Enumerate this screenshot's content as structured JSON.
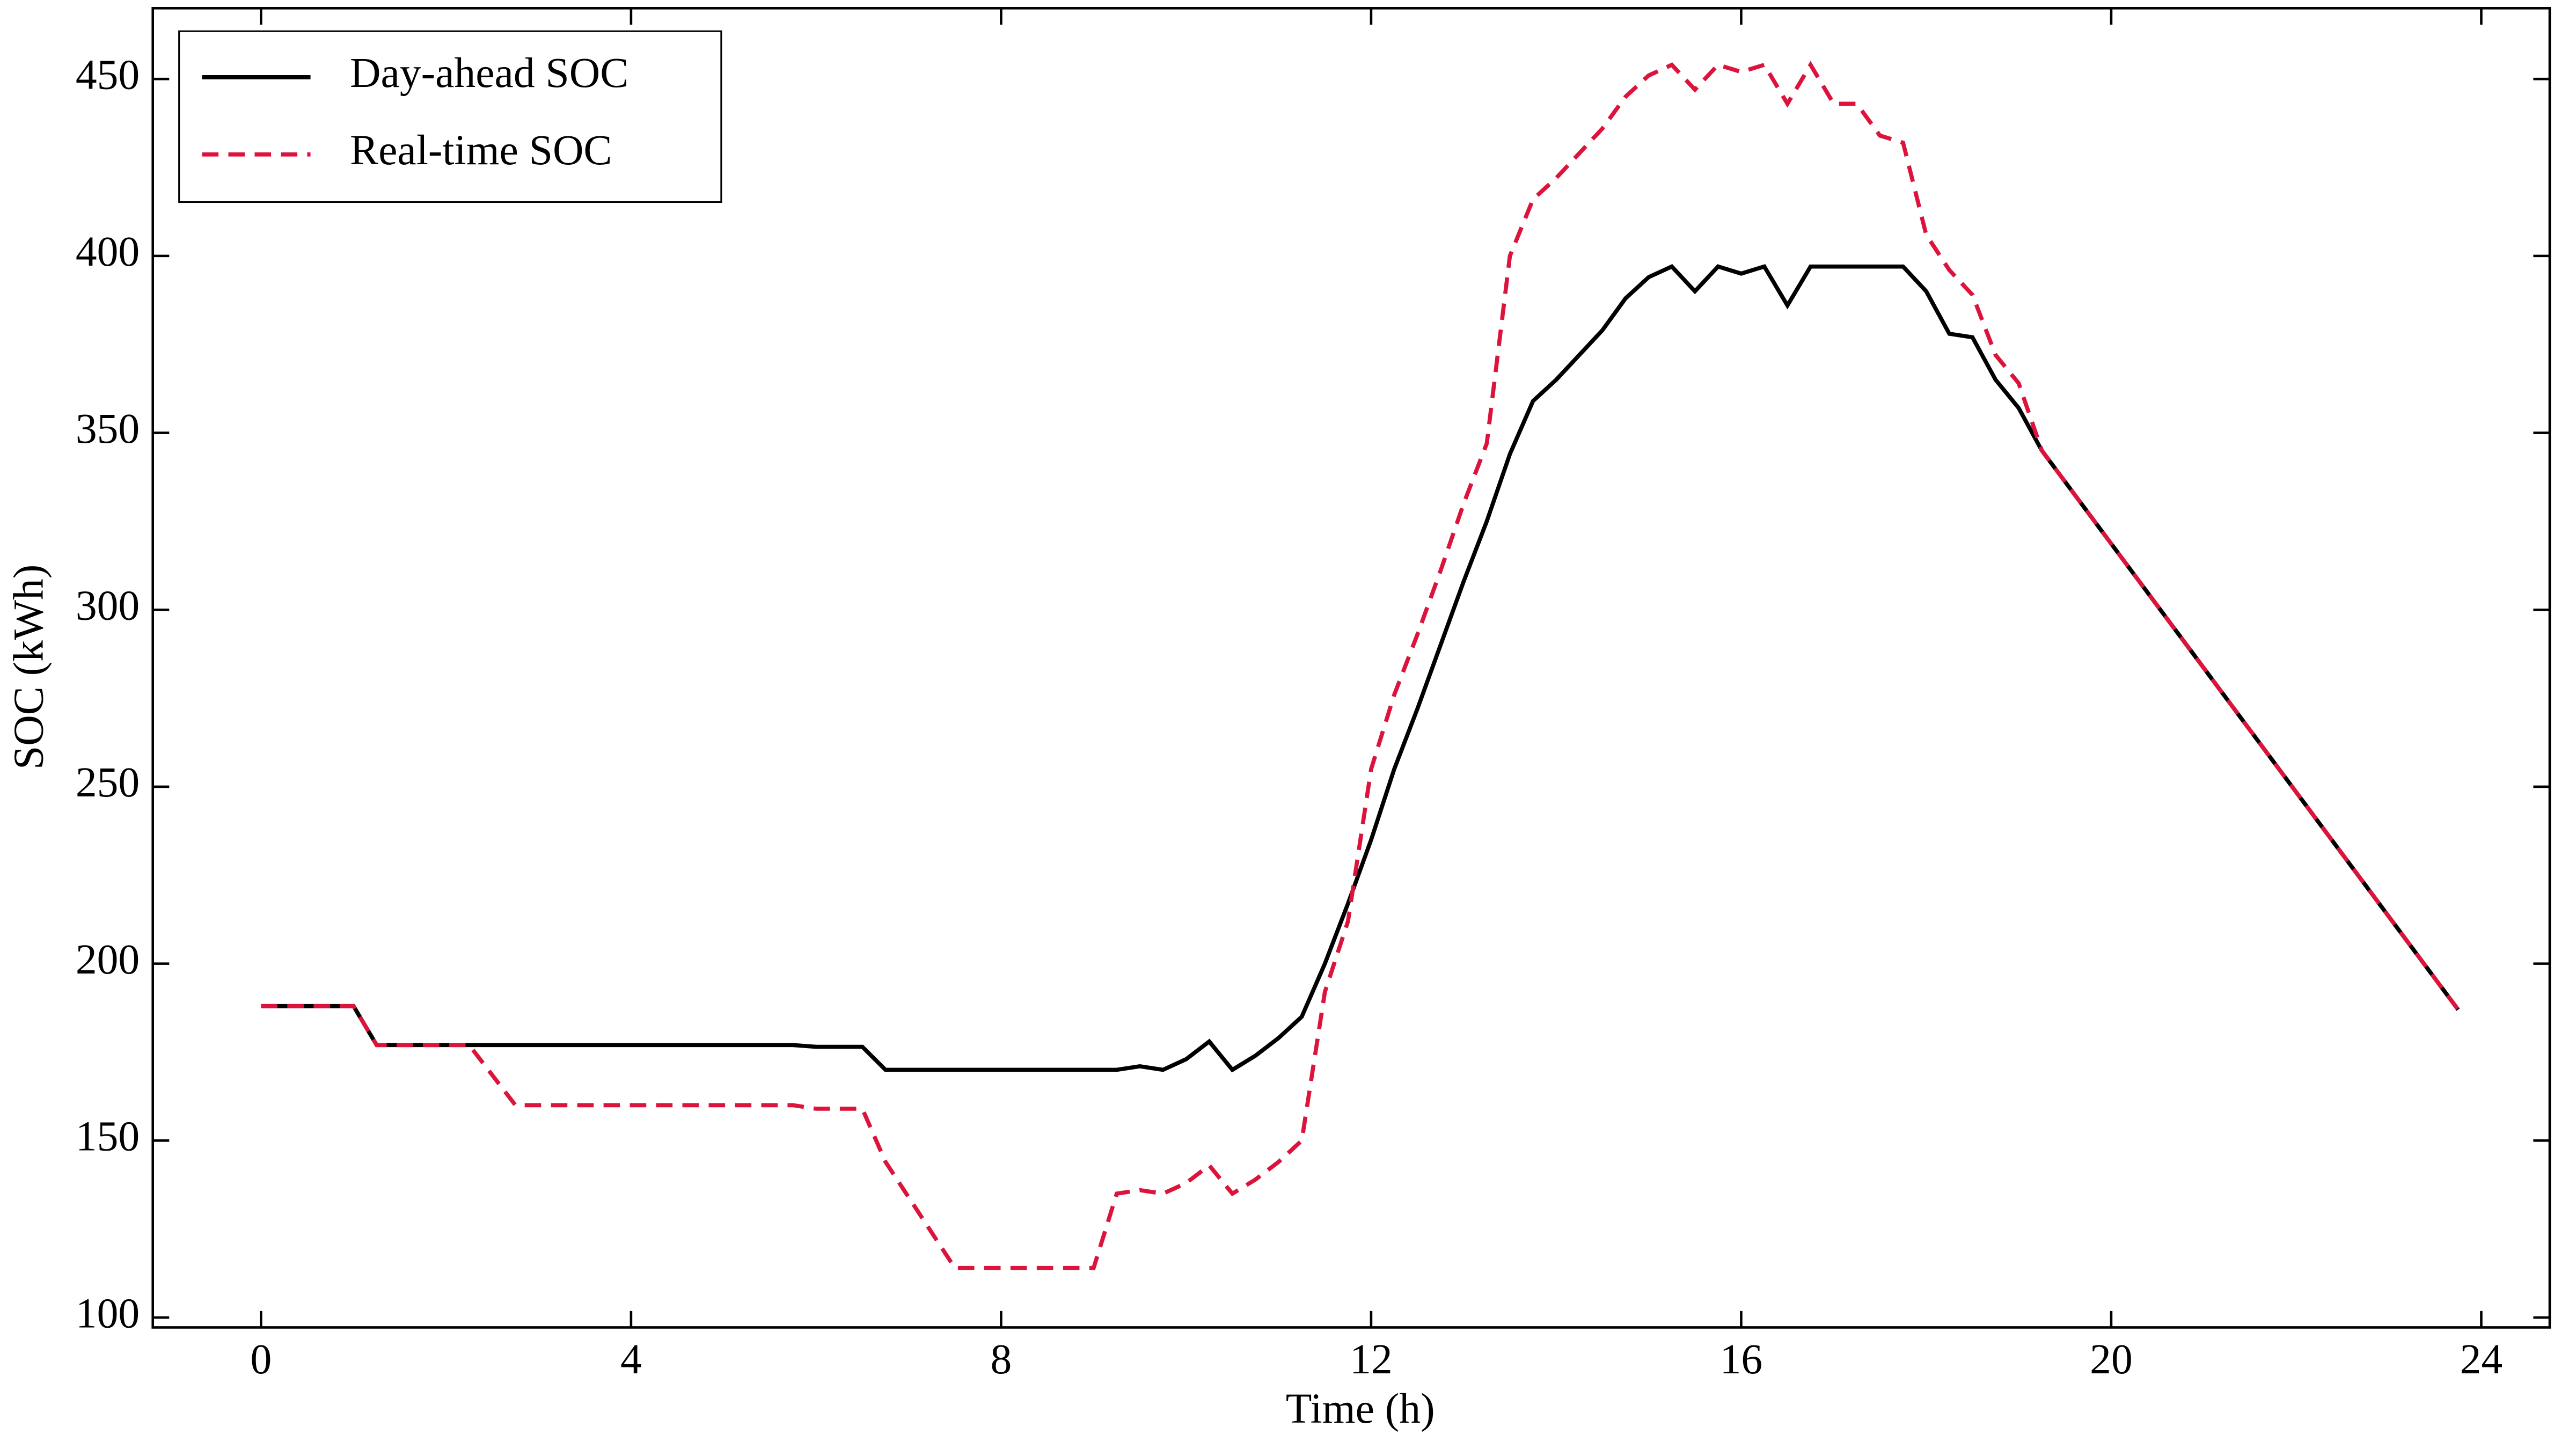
{
  "chart_data": {
    "type": "line",
    "xlabel": "Time (h)",
    "ylabel": "SOC (kWh)",
    "xlim": [
      -1.17,
      24.74
    ],
    "ylim": [
      97.2,
      470
    ],
    "xticks": [
      0,
      4,
      8,
      12,
      16,
      20,
      24
    ],
    "yticks": [
      100,
      150,
      200,
      250,
      300,
      350,
      400,
      450
    ],
    "legend": "upper left",
    "series": [
      {
        "name": "Day-ahead SOC",
        "color": "#000000",
        "dash": false,
        "x": [
          0,
          1,
          1.25,
          5.75,
          6,
          6.5,
          6.75,
          9.25,
          9.5,
          9.75,
          10,
          10.25,
          10.5,
          10.75,
          11,
          11.25,
          11.5,
          11.75,
          12,
          12.25,
          12.5,
          12.75,
          13,
          13.25,
          13.5,
          13.75,
          14,
          14.25,
          14.5,
          14.75,
          15,
          15.25,
          15.5,
          15.75,
          16,
          16.25,
          16.5,
          16.75,
          17.75,
          18,
          18.25,
          18.5,
          18.75,
          19,
          19.25,
          23.75
        ],
        "values": [
          188,
          188,
          177,
          177,
          176.5,
          176.5,
          170,
          170,
          171,
          170,
          173,
          178,
          170,
          174,
          179,
          185,
          200,
          217,
          235,
          255,
          272,
          290,
          308,
          325,
          344,
          359,
          365,
          372,
          379,
          388,
          394,
          397,
          390,
          397,
          395,
          397,
          386,
          397,
          397,
          390,
          378,
          377,
          365,
          357,
          345,
          187
        ]
      },
      {
        "name": "Real-time SOC",
        "color": "#dc143c",
        "dash": true,
        "x": [
          0,
          1,
          1.25,
          2.25,
          2.75,
          5.75,
          6,
          6.5,
          6.75,
          7.5,
          9,
          9.25,
          9.5,
          9.75,
          10,
          10.25,
          10.5,
          10.75,
          11,
          11.25,
          11.5,
          11.75,
          12,
          12.25,
          12.5,
          12.75,
          13,
          13.25,
          13.5,
          13.75,
          14,
          14.25,
          14.5,
          14.75,
          15,
          15.25,
          15.5,
          15.75,
          16,
          16.25,
          16.5,
          16.75,
          17,
          17.25,
          17.5,
          17.75,
          18,
          18.25,
          18.5,
          18.75,
          19,
          19.25,
          23.75
        ],
        "values": [
          188,
          188,
          177,
          177,
          160,
          160,
          159,
          159,
          144,
          114,
          114,
          135,
          136,
          135,
          138,
          143,
          135,
          139,
          144,
          150,
          192,
          212,
          255,
          276,
          293,
          311,
          330,
          347,
          400,
          416,
          422,
          429,
          436,
          445,
          451,
          454,
          447,
          454,
          452,
          454,
          443,
          454,
          443,
          443,
          434,
          432,
          406,
          396,
          389,
          372,
          364,
          345,
          187
        ]
      }
    ]
  }
}
